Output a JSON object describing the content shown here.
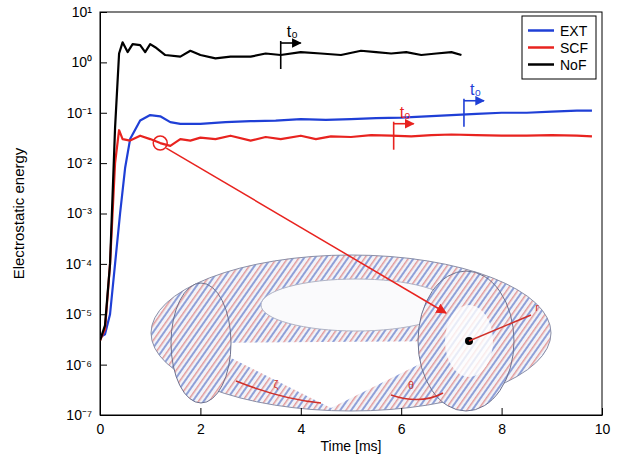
{
  "chart_data": {
    "type": "line",
    "y_label": "Electrostatic energy",
    "x_label": "Time [ms]",
    "log": "y",
    "legend": "upper right",
    "xlim": [
      0,
      10
    ],
    "xticks": [
      0,
      2,
      4,
      6,
      8,
      10
    ],
    "ylim": [
      1e-07,
      10
    ],
    "yticks": [
      {
        "value": 1e-07,
        "label": "10⁻⁷"
      },
      {
        "value": 1e-06,
        "label": "10⁻⁶"
      },
      {
        "value": 1e-05,
        "label": "10⁻⁵"
      },
      {
        "value": 0.0001,
        "label": "10⁻⁴"
      },
      {
        "value": 0.001,
        "label": "10⁻³"
      },
      {
        "value": 0.01,
        "label": "10⁻²"
      },
      {
        "value": 0.1,
        "label": "10⁻¹"
      },
      {
        "value": 1,
        "label": "10⁰"
      },
      {
        "value": 10,
        "label": "10¹"
      }
    ],
    "series": [
      {
        "name": "EXT",
        "color": "#1f3fd6",
        "x": [
          0,
          0.1,
          0.2,
          0.3,
          0.4,
          0.5,
          0.6,
          0.8,
          1.0,
          1.2,
          1.4,
          1.6,
          2.0,
          2.5,
          3.0,
          3.5,
          4.0,
          4.5,
          5.0,
          5.5,
          6.0,
          6.5,
          7.0,
          7.5,
          8.0,
          8.5,
          9.0,
          9.5,
          9.8
        ],
        "values": [
          3.5e-06,
          4e-06,
          1e-05,
          0.0001,
          0.001,
          0.008,
          0.03,
          0.07,
          0.09,
          0.085,
          0.065,
          0.06,
          0.06,
          0.065,
          0.068,
          0.07,
          0.075,
          0.072,
          0.075,
          0.078,
          0.08,
          0.085,
          0.09,
          0.095,
          0.1,
          0.1,
          0.105,
          0.11,
          0.11
        ]
      },
      {
        "name": "SCF",
        "color": "#e8231f",
        "x": [
          0,
          0.1,
          0.2,
          0.3,
          0.38,
          0.45,
          0.6,
          0.8,
          1.0,
          1.2,
          1.4,
          1.6,
          1.8,
          2.0,
          2.3,
          2.6,
          3.0,
          3.3,
          3.6,
          4.0,
          4.3,
          4.6,
          5.0,
          5.4,
          5.8,
          6.2,
          6.6,
          7.0,
          7.5,
          8.0,
          8.5,
          9.0,
          9.5,
          9.8
        ],
        "values": [
          3e-06,
          5e-06,
          0.0001,
          0.01,
          0.045,
          0.03,
          0.028,
          0.035,
          0.03,
          0.025,
          0.022,
          0.03,
          0.028,
          0.032,
          0.03,
          0.035,
          0.028,
          0.033,
          0.03,
          0.035,
          0.03,
          0.034,
          0.033,
          0.036,
          0.035,
          0.034,
          0.036,
          0.037,
          0.036,
          0.035,
          0.035,
          0.036,
          0.035,
          0.034
        ]
      },
      {
        "name": "NoF",
        "color": "#000000",
        "x": [
          0,
          0.1,
          0.2,
          0.3,
          0.38,
          0.45,
          0.55,
          0.65,
          0.8,
          0.9,
          1.0,
          1.1,
          1.3,
          1.6,
          1.8,
          2.0,
          2.3,
          2.6,
          3.0,
          3.3,
          3.6,
          4.0,
          4.4,
          4.8,
          5.2,
          5.5,
          5.8,
          6.1,
          6.4,
          6.7,
          7.0,
          7.2
        ],
        "values": [
          3e-06,
          6e-06,
          0.0001,
          0.05,
          1.5,
          2.5,
          1.6,
          2.3,
          2.2,
          1.6,
          2.3,
          2.0,
          1.4,
          1.3,
          1.7,
          1.4,
          1.2,
          1.3,
          1.3,
          1.5,
          1.4,
          1.6,
          1.5,
          1.4,
          1.7,
          1.6,
          1.5,
          1.6,
          1.4,
          1.5,
          1.6,
          1.4
        ]
      }
    ],
    "annotations": [
      {
        "text": "t₀",
        "x": 3.6,
        "y": 1.4,
        "color": "#000000"
      },
      {
        "text": "t₀",
        "x": 5.85,
        "y": 0.035,
        "color": "#e8231f"
      },
      {
        "text": "t₀",
        "x": 7.25,
        "y": 0.1,
        "color": "#1f3fd6"
      }
    ],
    "highlight": {
      "x": 1.2,
      "y": 0.025,
      "color": "#e8231f"
    },
    "inset_labels": [
      "ζ",
      "θ",
      "r"
    ]
  }
}
